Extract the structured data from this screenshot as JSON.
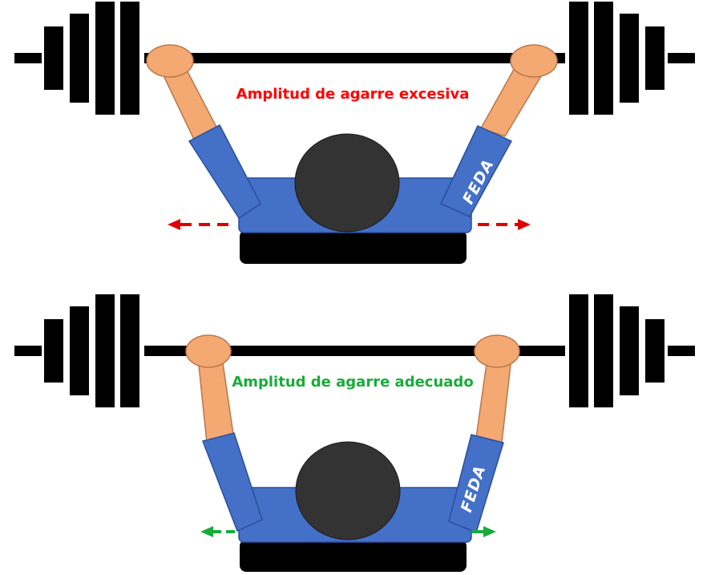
{
  "panels": [
    {
      "caption": "Amplitud de agarre excesiva",
      "caption_color": "#ff0000",
      "arrow_color": "#e00000",
      "logo_text": "FEDA"
    },
    {
      "caption": "Amplitud de agarre adecuado",
      "caption_color": "#1aaa3c",
      "arrow_color": "#1aaa3c",
      "logo_text": "FEDA"
    }
  ],
  "colors": {
    "bar": "#000000",
    "skin": "#f4a872",
    "skin_stroke": "#b9784a",
    "shirt": "#4470c8",
    "shirt_stroke": "#2a4f99",
    "head": "#333333",
    "bench": "#000000"
  }
}
